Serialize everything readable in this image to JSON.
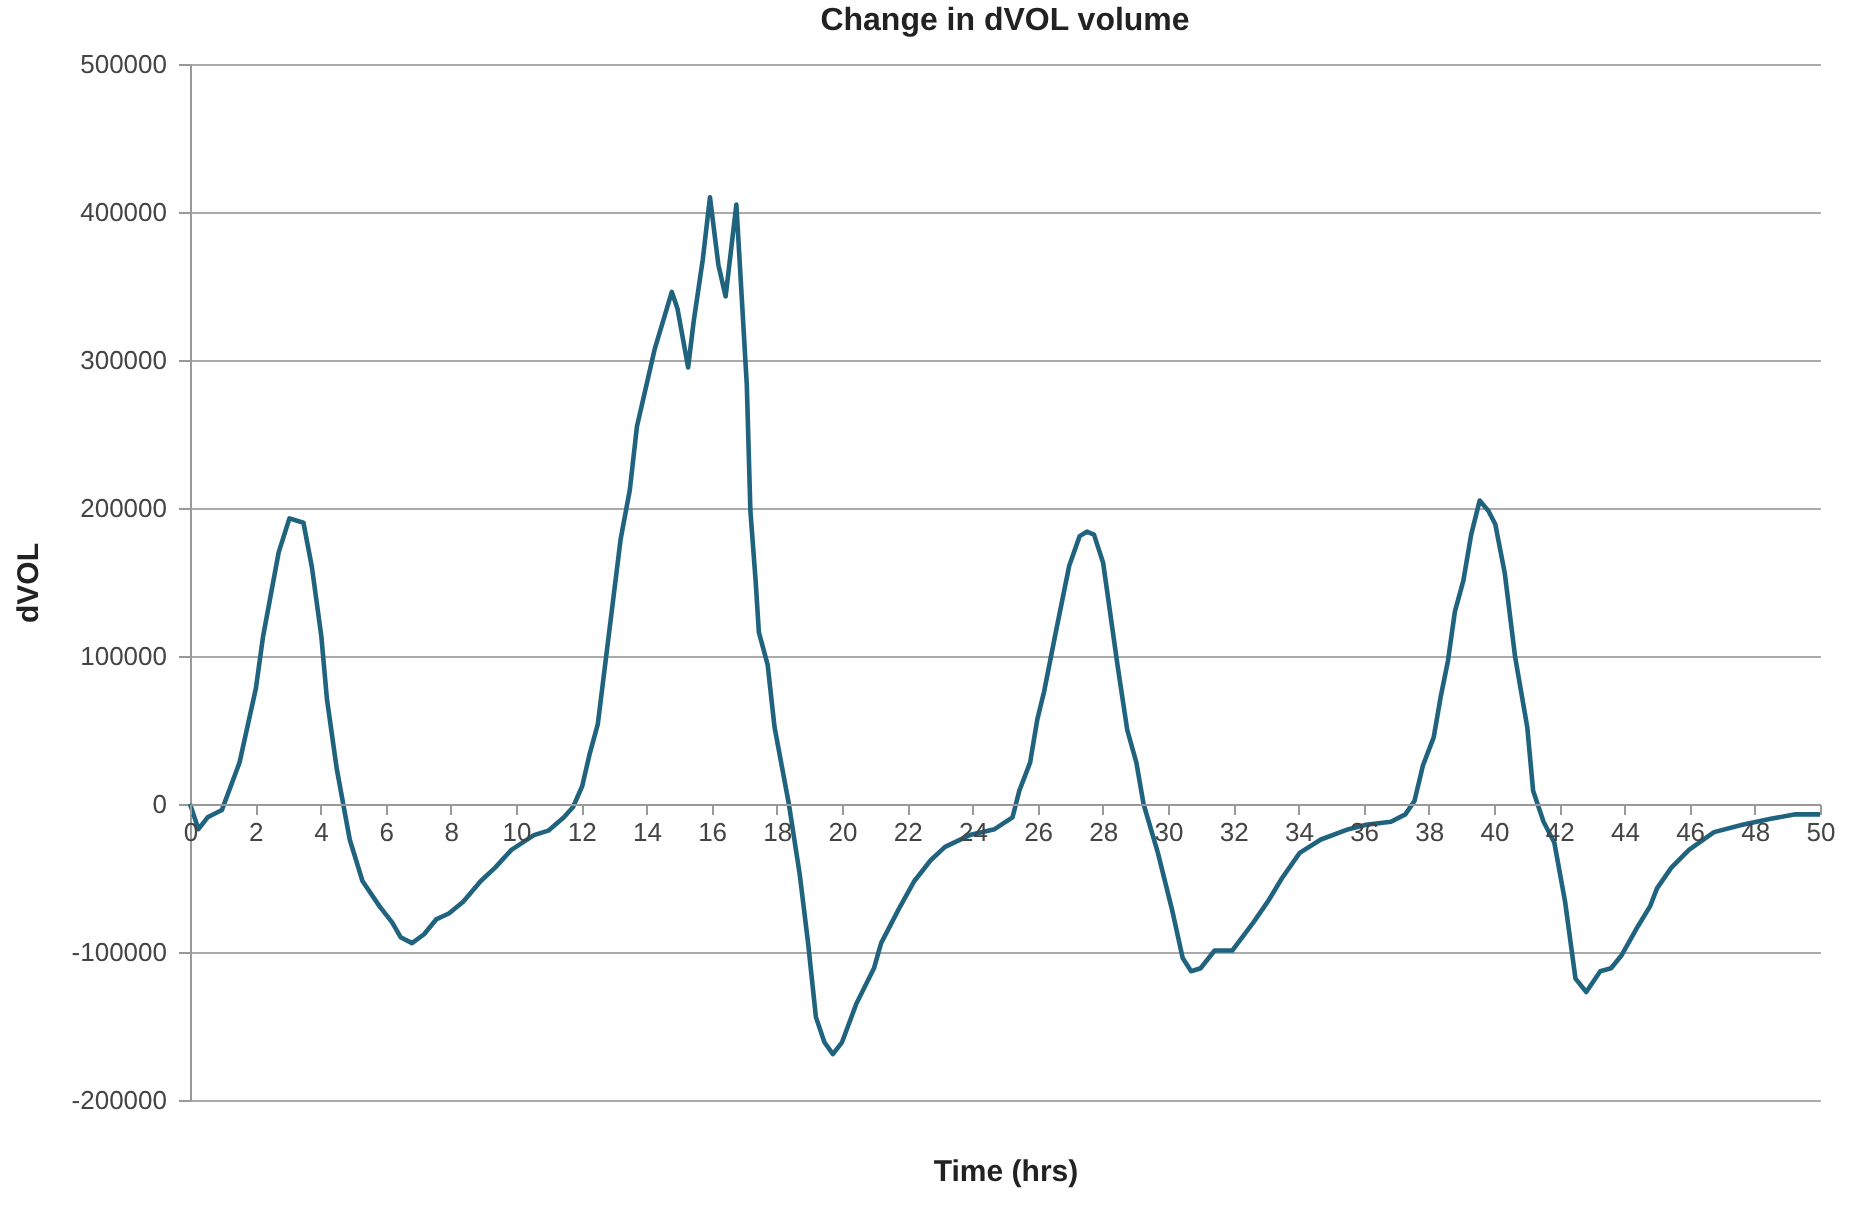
{
  "chart_data": {
    "type": "line",
    "title": "Change in dVOL volume",
    "xlabel": "Time (hrs)",
    "ylabel": "dVOL",
    "xlim": [
      0,
      50
    ],
    "xticks": [
      0,
      2,
      4,
      6,
      8,
      10,
      12,
      14,
      16,
      18,
      20,
      22,
      24,
      26,
      28,
      30,
      32,
      34,
      36,
      38,
      40,
      42,
      44,
      46,
      48,
      50
    ],
    "ylim": [
      -200000,
      500000
    ],
    "yticks": [
      -200000,
      -100000,
      0,
      100000,
      200000,
      300000,
      400000,
      500000
    ],
    "grid": "y",
    "legend": false,
    "marker": "none",
    "line_style": "solid",
    "series": [
      {
        "color": "#20637f",
        "x": [
          0,
          0.26,
          0.54,
          0.98,
          1.52,
          2.02,
          2.24,
          2.72,
          3.05,
          3.48,
          3.74,
          4.03,
          4.2,
          4.5,
          4.9,
          5.29,
          5.81,
          6.2,
          6.46,
          6.81,
          7.18,
          7.55,
          7.94,
          8.38,
          8.92,
          9.36,
          9.86,
          10.55,
          10.99,
          11.47,
          11.75,
          12.03,
          12.25,
          12.51,
          12.84,
          13.21,
          13.49,
          13.71,
          14.25,
          14.78,
          14.95,
          15.28,
          15.45,
          15.73,
          15.95,
          16.21,
          16.43,
          16.76,
          17.08,
          17.19,
          17.35,
          17.45,
          17.72,
          17.93,
          18.37,
          18.7,
          18.96,
          19.2,
          19.46,
          19.72,
          20.0,
          20.44,
          20.98,
          21.2,
          21.74,
          22.22,
          22.72,
          23.16,
          23.92,
          24.68,
          25.23,
          25.44,
          25.77,
          25.99,
          26.2,
          26.53,
          26.97,
          27.29,
          27.51,
          27.73,
          28.01,
          28.45,
          28.75,
          29.03,
          29.25,
          29.69,
          30.12,
          30.45,
          30.71,
          31.0,
          31.43,
          31.97,
          32.62,
          33.06,
          33.5,
          34.04,
          34.69,
          35.54,
          36.08,
          36.84,
          37.28,
          37.56,
          37.82,
          38.15,
          38.37,
          38.59,
          38.8,
          39.06,
          39.3,
          39.56,
          39.83,
          40.04,
          40.33,
          40.65,
          41.02,
          41.2,
          41.52,
          41.85,
          42.18,
          42.5,
          42.83,
          43.26,
          43.59,
          43.92,
          44.35,
          44.79,
          45.0,
          45.44,
          45.98,
          46.75,
          47.62,
          48.49,
          49.25,
          50
        ],
        "values": [
          0,
          -17000,
          -9000,
          -4000,
          28000,
          78000,
          113000,
          170000,
          193000,
          190000,
          160000,
          113000,
          71000,
          24000,
          -24000,
          -52000,
          -69000,
          -80000,
          -90000,
          -94000,
          -88000,
          -78000,
          -74000,
          -66000,
          -52000,
          -43000,
          -31000,
          -21000,
          -18000,
          -9000,
          -2000,
          12000,
          33000,
          54000,
          113000,
          179000,
          212000,
          255000,
          307000,
          346000,
          335000,
          295000,
          326000,
          368000,
          410000,
          364000,
          343000,
          405000,
          283000,
          198000,
          151000,
          116000,
          94000,
          52000,
          0,
          -47000,
          -94000,
          -144000,
          -161000,
          -169000,
          -161000,
          -135000,
          -111000,
          -94000,
          -71000,
          -52000,
          -38000,
          -29000,
          -21000,
          -17000,
          -9000,
          9000,
          28000,
          57000,
          76000,
          113000,
          161000,
          181000,
          184000,
          182000,
          163000,
          94000,
          50000,
          28000,
          0,
          -33000,
          -71000,
          -104000,
          -113000,
          -111000,
          -99000,
          -99000,
          -80000,
          -66000,
          -50000,
          -33000,
          -24000,
          -17000,
          -14000,
          -12000,
          -7000,
          2000,
          26000,
          45000,
          73000,
          97000,
          130000,
          151000,
          182000,
          205000,
          198000,
          189000,
          156000,
          99000,
          52000,
          9000,
          -12000,
          -26000,
          -66000,
          -118000,
          -127000,
          -113000,
          -111000,
          -102000,
          -85000,
          -69000,
          -57000,
          -43000,
          -31000,
          -19000,
          -14000,
          -10000,
          -7000,
          -7000
        ]
      }
    ]
  }
}
